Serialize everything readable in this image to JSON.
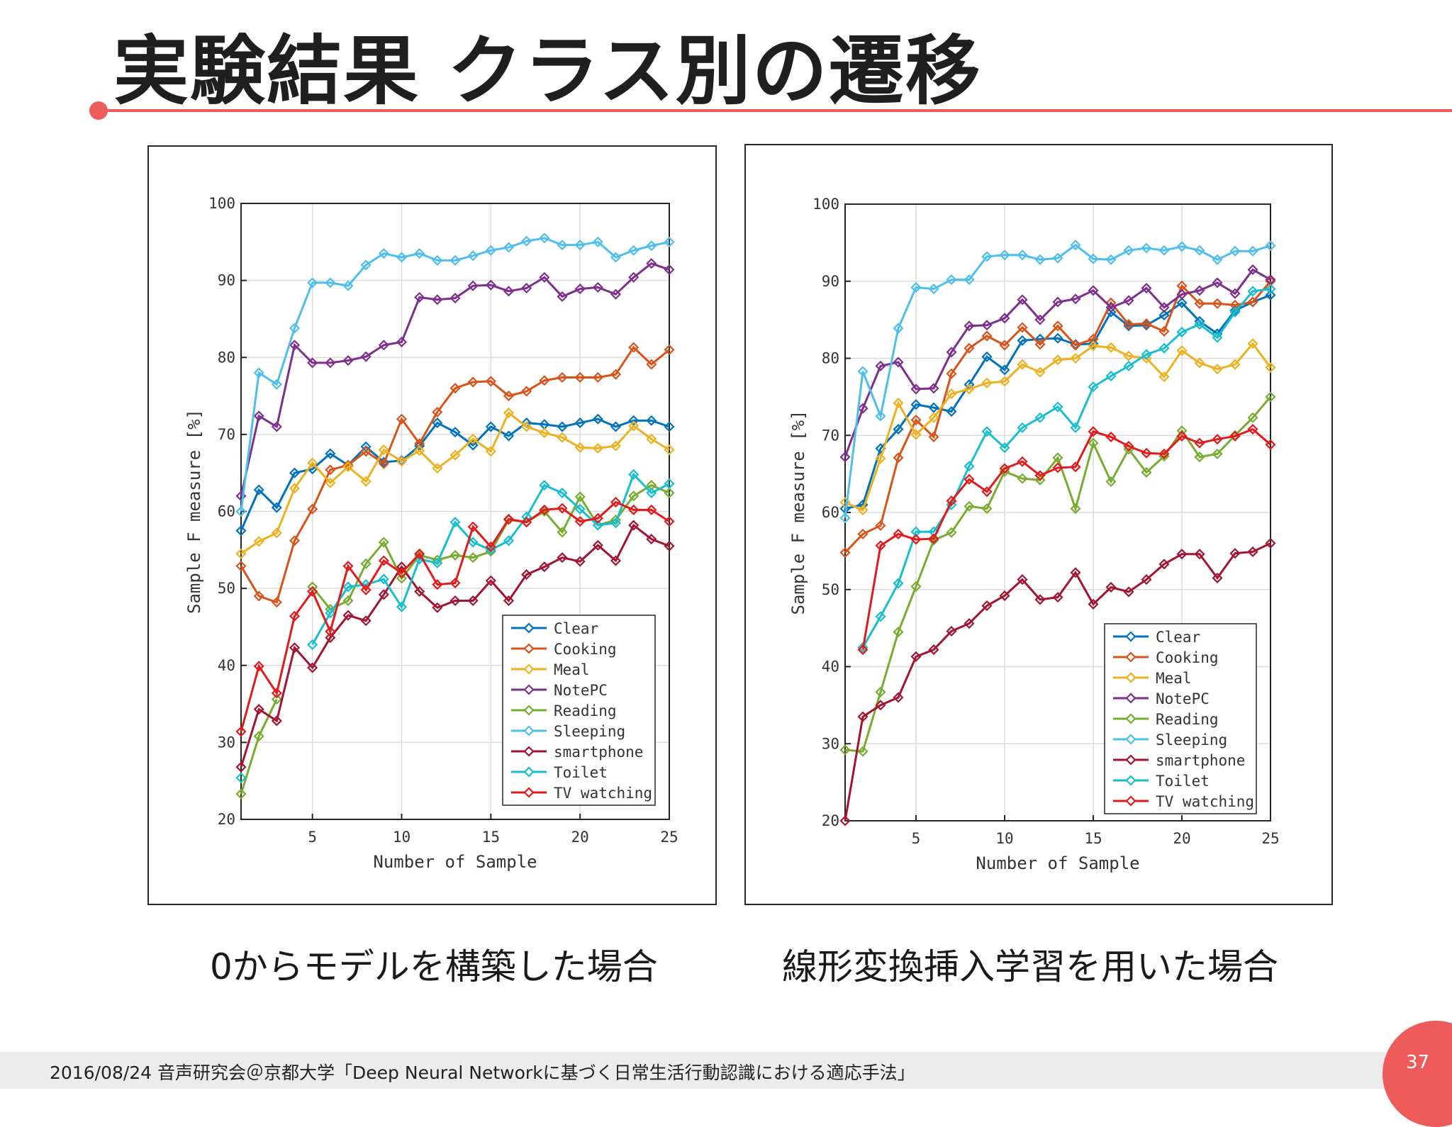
{
  "slide": {
    "title": "実験結果 クラス別の遷移",
    "caption_left": "0からモデルを構築した場合",
    "caption_right": "線形変換挿入学習を用いた場合",
    "footer": "2016/08/24  音声研究会＠京都大学「Deep Neural Networkに基づく日常生活行動認識における適応手法」",
    "page_number": "37",
    "accent_color": "#ee5b5b"
  },
  "chart_data": [
    {
      "type": "line",
      "title": "",
      "xlabel": "Number of Sample",
      "ylabel": "Sample F measure [%]",
      "xlim": [
        1,
        25
      ],
      "ylim": [
        20,
        100
      ],
      "xticks": [
        5,
        10,
        15,
        20,
        25
      ],
      "yticks": [
        20,
        30,
        40,
        50,
        60,
        70,
        80,
        90,
        100
      ],
      "grid": true,
      "legend_position": "bottom-right",
      "marker": "diamond",
      "x": [
        1,
        2,
        3,
        4,
        5,
        6,
        7,
        8,
        9,
        10,
        11,
        12,
        13,
        14,
        15,
        16,
        17,
        18,
        19,
        20,
        21,
        22,
        23,
        24,
        25
      ],
      "series": [
        {
          "name": "Clear",
          "color": "#0072bd",
          "values": [
            57.5,
            62.8,
            60.5,
            65,
            65.5,
            67.5,
            66,
            68.4,
            66.4,
            66.6,
            68.5,
            71.5,
            70.3,
            68.6,
            71,
            69.8,
            71.5,
            71.3,
            71,
            71.5,
            72,
            71,
            71.8,
            71.8,
            71
          ]
        },
        {
          "name": "Cooking",
          "color": "#d95319",
          "values": [
            52.9,
            49,
            48.2,
            56.2,
            60.3,
            65.4,
            66,
            67.8,
            66.2,
            72,
            68.8,
            72.9,
            76,
            76.8,
            76.9,
            75,
            75.6,
            77,
            77.4,
            77.4,
            77.4,
            77.8,
            81.3,
            79.1,
            81
          ]
        },
        {
          "name": "Meal",
          "color": "#edb120",
          "values": [
            54.5,
            56.1,
            57.2,
            63,
            66.3,
            63.7,
            65.8,
            63.9,
            68,
            66.5,
            67.9,
            65.6,
            67.3,
            69.4,
            67.8,
            72.8,
            71,
            70.2,
            69.6,
            68.3,
            68.2,
            68.5,
            71.1,
            69.4,
            68
          ]
        },
        {
          "name": "NotePC",
          "color": "#7e2f8e",
          "values": [
            62,
            72.4,
            71,
            81.6,
            79.3,
            79.3,
            79.6,
            80.1,
            81.6,
            82,
            87.8,
            87.5,
            87.7,
            89.3,
            89.4,
            88.6,
            89,
            90.4,
            87.9,
            88.9,
            89.1,
            88.2,
            90.4,
            92.2,
            91.4
          ]
        },
        {
          "name": "Reading",
          "color": "#77ac30",
          "values": [
            23.3,
            30.8,
            35.6,
            null,
            50.2,
            47.3,
            48.4,
            53.2,
            56,
            51.3,
            54.3,
            53.7,
            54.3,
            54,
            54.8,
            58.9,
            58.6,
            60,
            57.3,
            61.9,
            58.2,
            58.9,
            62,
            63.4,
            62.4
          ]
        },
        {
          "name": "Sleeping",
          "color": "#4dbeee",
          "values": [
            60,
            78,
            76.5,
            83.8,
            89.7,
            89.7,
            89.3,
            92,
            93.5,
            93,
            93.5,
            92.6,
            92.6,
            93.2,
            93.9,
            94.3,
            95.1,
            95.5,
            94.6,
            94.6,
            95,
            93,
            93.9,
            94.5,
            95
          ]
        },
        {
          "name": "smartphone",
          "color": "#a2142f",
          "values": [
            26.8,
            34.3,
            32.8,
            42.3,
            39.7,
            43.6,
            46.5,
            45.8,
            49.2,
            52.8,
            49.6,
            47.5,
            48.4,
            48.4,
            51,
            48.4,
            51.8,
            52.8,
            54,
            53.5,
            55.6,
            53.6,
            58.2,
            56.4,
            55.5
          ]
        },
        {
          "name": "Toilet",
          "color": "#17becf",
          "values": [
            25.4,
            null,
            null,
            null,
            42.7,
            46.8,
            50.2,
            50.5,
            51.2,
            47.6,
            53.8,
            53.3,
            58.6,
            56,
            55,
            56.2,
            59.3,
            63.4,
            62.4,
            60.3,
            58.2,
            58.5,
            64.8,
            62.4,
            63.6
          ]
        },
        {
          "name": "TV watching",
          "color": "#e31a1c",
          "values": [
            31.4,
            39.9,
            36.4,
            46.4,
            49.6,
            44.4,
            52.9,
            49.8,
            53.6,
            52,
            54.5,
            50.5,
            50.7,
            58,
            55.4,
            59,
            58.6,
            60.2,
            60.4,
            58.7,
            59.1,
            61.2,
            60.2,
            60.2,
            58.7
          ]
        }
      ]
    },
    {
      "type": "line",
      "title": "",
      "xlabel": "Number of Sample",
      "ylabel": "Sample F measure [%]",
      "xlim": [
        1,
        25
      ],
      "ylim": [
        20,
        100
      ],
      "xticks": [
        5,
        10,
        15,
        20,
        25
      ],
      "yticks": [
        20,
        30,
        40,
        50,
        60,
        70,
        80,
        90,
        100
      ],
      "grid": true,
      "legend_position": "bottom-right",
      "marker": "diamond",
      "x": [
        1,
        2,
        3,
        4,
        5,
        6,
        7,
        8,
        9,
        10,
        11,
        12,
        13,
        14,
        15,
        16,
        17,
        18,
        19,
        20,
        21,
        22,
        23,
        24,
        25
      ],
      "series": [
        {
          "name": "Clear",
          "color": "#0072bd",
          "values": [
            60.5,
            61,
            68.3,
            70.8,
            74,
            73.6,
            73.1,
            76.6,
            80.2,
            78.5,
            82.3,
            82.5,
            82.6,
            81.8,
            81.9,
            86,
            84.2,
            84.3,
            85.6,
            87.2,
            84.8,
            83.2,
            86.2,
            87.3,
            88.2
          ]
        },
        {
          "name": "Cooking",
          "color": "#d95319",
          "values": [
            54.8,
            57.2,
            58.3,
            67.1,
            72,
            69.8,
            78,
            81.3,
            82.9,
            81.7,
            84,
            81.8,
            84.2,
            81.7,
            82.5,
            87.2,
            84.4,
            84.5,
            83.5,
            89.4,
            87.1,
            87.1,
            86.9,
            87.3,
            90
          ]
        },
        {
          "name": "Meal",
          "color": "#edb120",
          "values": [
            61.3,
            60.3,
            67,
            74.2,
            70.1,
            72.3,
            75.4,
            76,
            76.8,
            77,
            79.2,
            78.2,
            79.8,
            80,
            81.6,
            81.4,
            80.3,
            80,
            77.6,
            81,
            79.4,
            78.6,
            79.2,
            81.9,
            78.8
          ]
        },
        {
          "name": "NotePC",
          "color": "#7e2f8e",
          "values": [
            67.2,
            73.5,
            79,
            79.5,
            76,
            76.1,
            80.8,
            84.2,
            84.3,
            85.2,
            87.6,
            85,
            87.3,
            87.7,
            88.8,
            86.6,
            87.5,
            89.1,
            86.6,
            88.3,
            88.8,
            89.8,
            88.4,
            91.5,
            90.2
          ]
        },
        {
          "name": "Reading",
          "color": "#77ac30",
          "values": [
            29.2,
            29,
            36.7,
            44.5,
            50.4,
            56.4,
            57.4,
            60.8,
            60.5,
            65.3,
            64.4,
            64.2,
            67.1,
            60.5,
            69,
            64,
            68.2,
            65.2,
            67.3,
            70.6,
            67.2,
            67.6,
            70,
            72.3,
            75
          ]
        },
        {
          "name": "Sleeping",
          "color": "#4dbeee",
          "values": [
            59.3,
            78.3,
            72.5,
            83.9,
            89.2,
            89,
            90.2,
            90.2,
            93.2,
            93.4,
            93.4,
            92.8,
            93,
            94.7,
            92.9,
            92.8,
            94,
            94.3,
            94,
            94.5,
            94,
            92.8,
            93.9,
            93.9,
            94.6
          ]
        },
        {
          "name": "smartphone",
          "color": "#a2142f",
          "values": [
            20,
            33.5,
            35,
            36,
            41.3,
            42.2,
            44.6,
            45.6,
            47.9,
            49.2,
            51.3,
            48.7,
            49,
            52.2,
            48.1,
            50.3,
            49.7,
            51.3,
            53.3,
            54.6,
            54.6,
            51.5,
            54.7,
            54.9,
            56
          ]
        },
        {
          "name": "Toilet",
          "color": "#17becf",
          "values": [
            null,
            42.5,
            46.5,
            50.8,
            57.5,
            57.5,
            61,
            66,
            70.5,
            68.4,
            71,
            72.3,
            73.7,
            71,
            76.3,
            77.7,
            79,
            80.5,
            81.3,
            83.4,
            84.4,
            82.7,
            86,
            88.7,
            89
          ]
        },
        {
          "name": "TV watching",
          "color": "#e31a1c",
          "values": [
            null,
            42.2,
            55.7,
            57.2,
            56.5,
            56.6,
            61.5,
            64.3,
            62.7,
            65.7,
            66.6,
            64.8,
            65.8,
            65.9,
            70.5,
            69.8,
            68.6,
            67.7,
            67.6,
            69.9,
            69,
            69.5,
            69.9,
            70.8,
            68.8
          ]
        }
      ]
    }
  ]
}
